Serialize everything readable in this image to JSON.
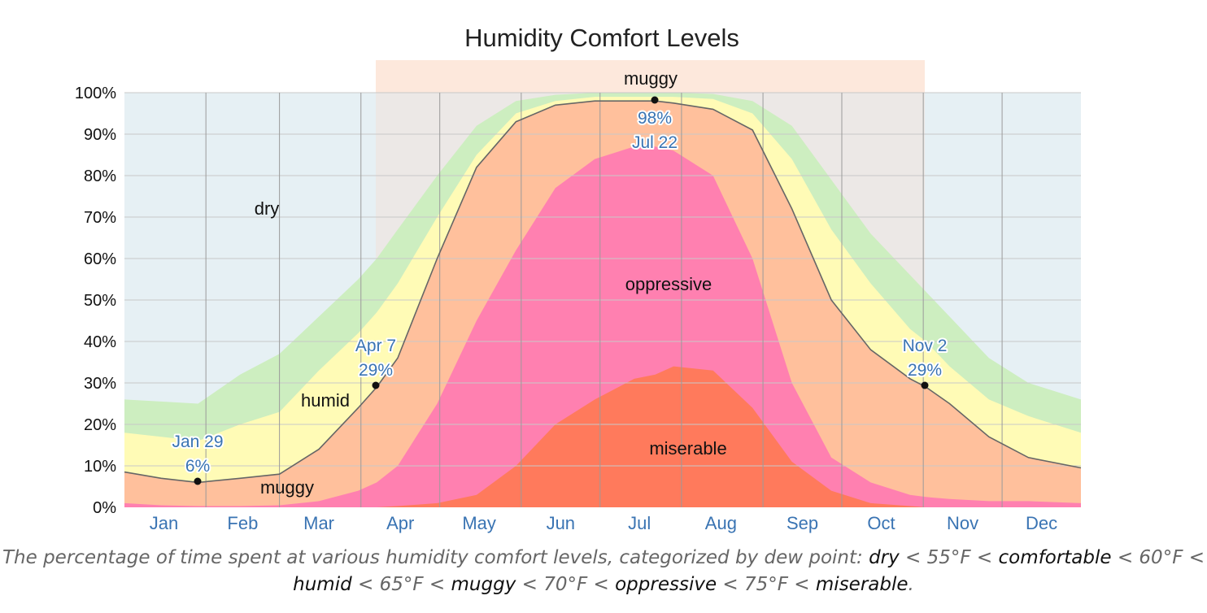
{
  "chart_data": {
    "type": "area",
    "stacked": true,
    "title": "Humidity Comfort Levels",
    "ylim": [
      0,
      100
    ],
    "yticks": [
      "0%",
      "10%",
      "20%",
      "30%",
      "40%",
      "50%",
      "60%",
      "70%",
      "80%",
      "90%",
      "100%"
    ],
    "months": [
      "Jan",
      "Feb",
      "Mar",
      "Apr",
      "May",
      "Jun",
      "Jul",
      "Aug",
      "Sep",
      "Oct",
      "Nov",
      "Dec"
    ],
    "x_day_of_year": [
      1,
      15,
      29,
      45,
      60,
      75,
      90,
      97,
      105,
      120,
      135,
      150,
      165,
      180,
      195,
      203,
      210,
      225,
      240,
      255,
      270,
      285,
      300,
      306,
      315,
      330,
      345,
      365
    ],
    "series": [
      {
        "name": "miserable",
        "values": [
          0,
          0,
          0,
          0,
          0,
          0,
          0,
          0,
          0.3,
          1,
          3,
          10,
          20,
          26,
          31,
          32,
          34,
          33,
          24,
          11,
          4,
          1,
          0.3,
          0,
          0,
          0,
          0,
          0
        ],
        "color": "#ff7a5c"
      },
      {
        "name": "oppressive",
        "values": [
          1,
          0.5,
          0.3,
          0.3,
          0.5,
          1.5,
          4,
          6,
          10,
          25,
          45,
          62,
          77,
          84,
          87,
          87,
          86,
          80,
          60,
          30,
          12,
          6,
          3,
          2.5,
          2,
          1.5,
          1.5,
          1
        ],
        "color": "#ff80b0"
      },
      {
        "name": "muggy",
        "values": [
          8.5,
          7,
          6,
          7,
          8,
          14,
          24,
          29,
          36,
          60,
          82,
          93,
          97,
          98,
          98,
          98,
          97.5,
          96,
          91,
          72,
          50,
          38,
          31,
          29,
          25,
          17,
          12,
          9.5
        ],
        "color": "#ffc09c"
      },
      {
        "name": "humid",
        "values": [
          18,
          17,
          16,
          20,
          23,
          33,
          42,
          47,
          54,
          70,
          85,
          95,
          98,
          99,
          99,
          99,
          99,
          98.5,
          95,
          84,
          67,
          54,
          43,
          40,
          34,
          26,
          22,
          18
        ],
        "color": "#fffbb6"
      },
      {
        "name": "comfortable",
        "values": [
          26,
          25.5,
          25,
          32,
          37,
          46,
          55,
          60,
          67,
          80,
          92,
          98,
          99.5,
          100,
          100,
          100,
          100,
          99.7,
          98,
          92,
          79,
          66,
          56,
          52,
          46,
          36,
          30,
          26
        ],
        "color": "#cdeec0"
      }
    ],
    "highlight_muggy_period": {
      "start_day": 97,
      "end_day": 306,
      "label": "muggy"
    },
    "annotations": [
      {
        "date": "Jan 29",
        "day": 29,
        "value": 6,
        "text_date": "Jan 29",
        "text_value": "6%"
      },
      {
        "date": "Apr 7",
        "day": 97,
        "value": 29,
        "text_date": "Apr 7",
        "text_value": "29%"
      },
      {
        "date": "Jul 22",
        "day": 203,
        "value": 98,
        "text_date": "Jul 22",
        "text_value": "98%"
      },
      {
        "date": "Nov 2",
        "day": 306,
        "value": 29,
        "text_date": "Nov 2",
        "text_value": "29%"
      }
    ],
    "band_labels": {
      "dry": "dry",
      "humid": "humid",
      "muggy": "muggy",
      "oppressive": "oppressive",
      "miserable": "miserable"
    },
    "colors": {
      "dry_background": "#e6f0f4",
      "dry_background_highlight": "#ece8e6",
      "highlight_band": "#fde8dc",
      "muggy_line": "#666666",
      "grid": "#c8c8c8"
    }
  },
  "caption": {
    "intro": "The percentage of time spent at various humidity comfort levels, categorized by dew point: ",
    "dry": "dry",
    "sep1": " < 55°F < ",
    "comfortable": "comfortable",
    "sep2": " < 60°F < ",
    "humid": "humid",
    "sep3": " < 65°F < ",
    "muggy": "muggy",
    "sep4": " < 70°F < ",
    "oppressive": "oppressive",
    "sep5": " < 75°F < ",
    "miserable": "miserable",
    "end": "."
  }
}
